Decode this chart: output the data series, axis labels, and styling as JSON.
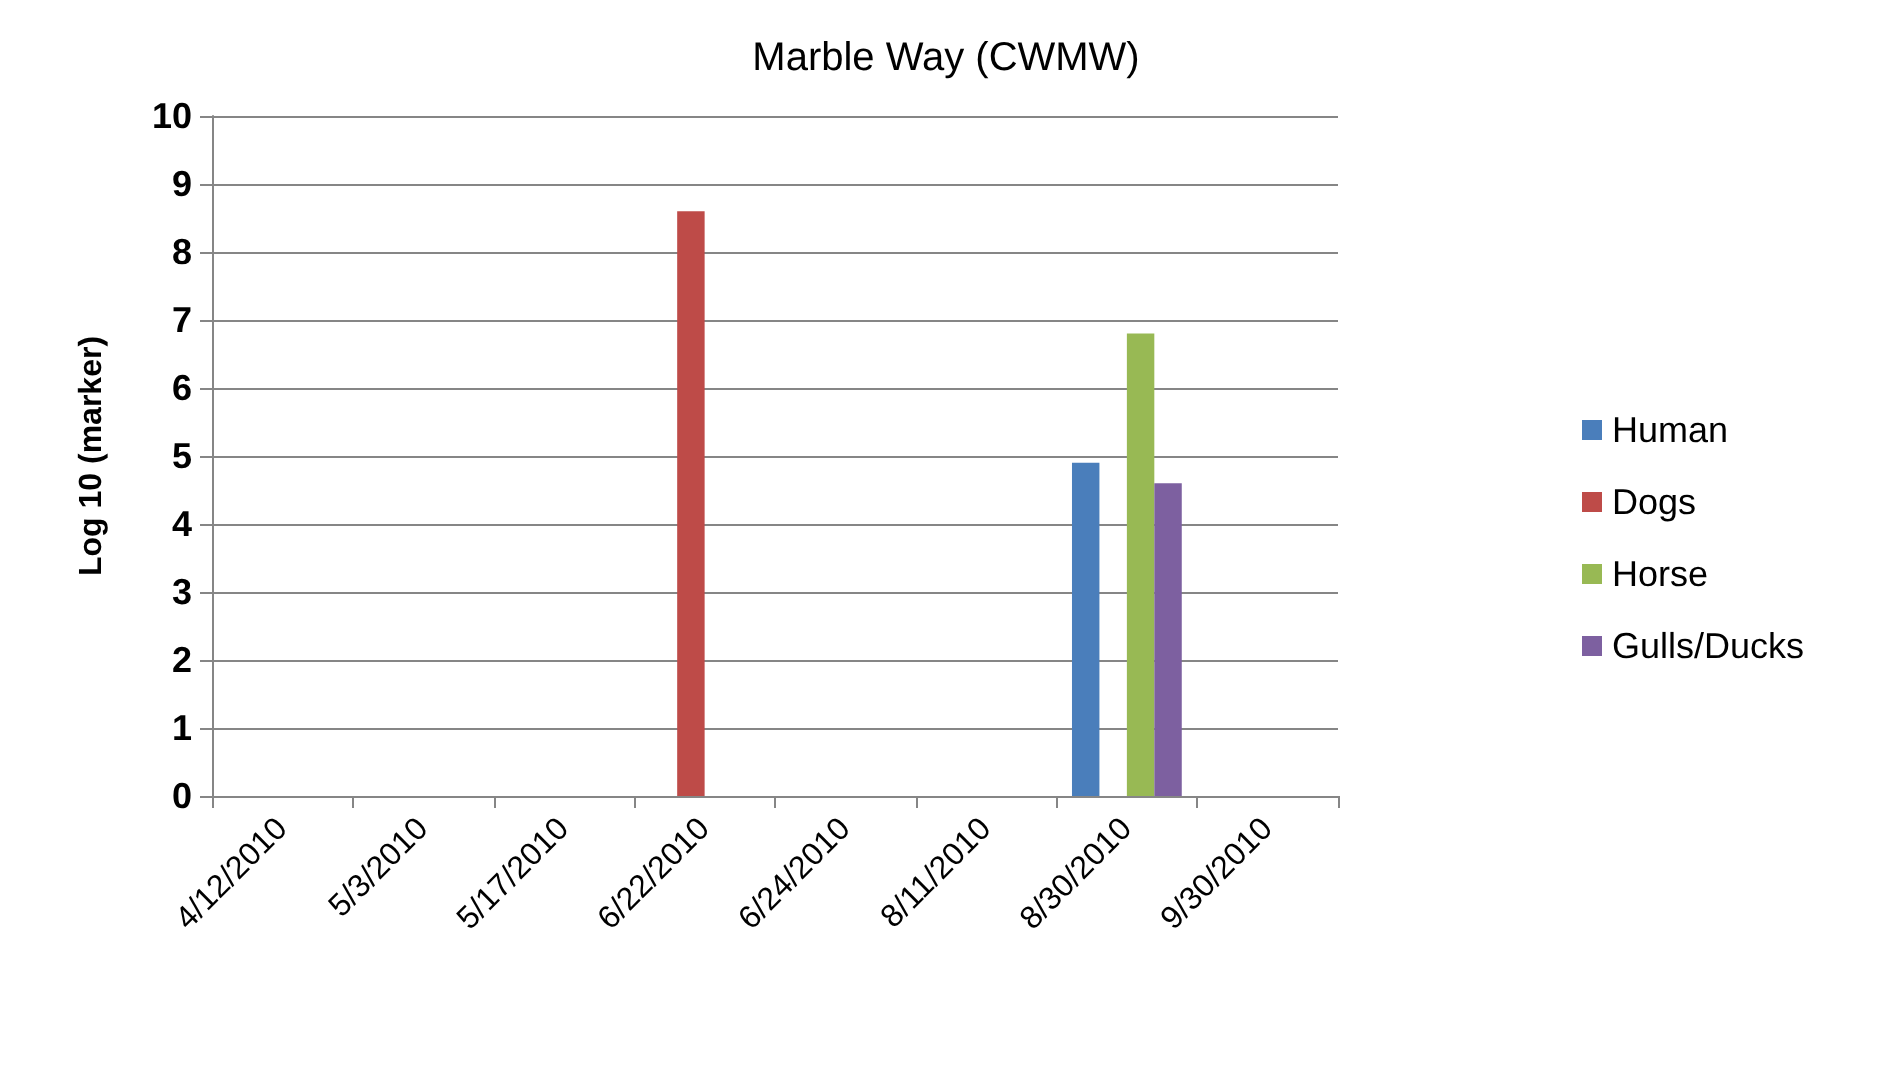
{
  "chart_data": {
    "type": "bar",
    "title": "Marble Way (CWMW)",
    "ylabel": "Log 10 (marker)",
    "categories": [
      "4/12/2010",
      "5/3/2010",
      "5/17/2010",
      "6/22/2010",
      "6/24/2010",
      "8/11/2010",
      "8/30/2010",
      "9/30/2010"
    ],
    "series": [
      {
        "name": "Human",
        "color": "#4a7ebb",
        "values": [
          null,
          null,
          null,
          null,
          null,
          null,
          4.9,
          null
        ]
      },
      {
        "name": "Dogs",
        "color": "#be4b48",
        "values": [
          null,
          null,
          null,
          8.6,
          null,
          null,
          null,
          null
        ]
      },
      {
        "name": "Horse",
        "color": "#98b954",
        "values": [
          null,
          null,
          null,
          null,
          null,
          null,
          6.8,
          null
        ]
      },
      {
        "name": "Gulls/Ducks",
        "color": "#7d60a0",
        "values": [
          null,
          null,
          null,
          null,
          null,
          null,
          4.6,
          null
        ]
      }
    ],
    "ylim": [
      0,
      10
    ],
    "yticks": [
      0,
      1,
      2,
      3,
      4,
      5,
      6,
      7,
      8,
      9,
      10
    ],
    "grid": "y",
    "legend": "right"
  }
}
